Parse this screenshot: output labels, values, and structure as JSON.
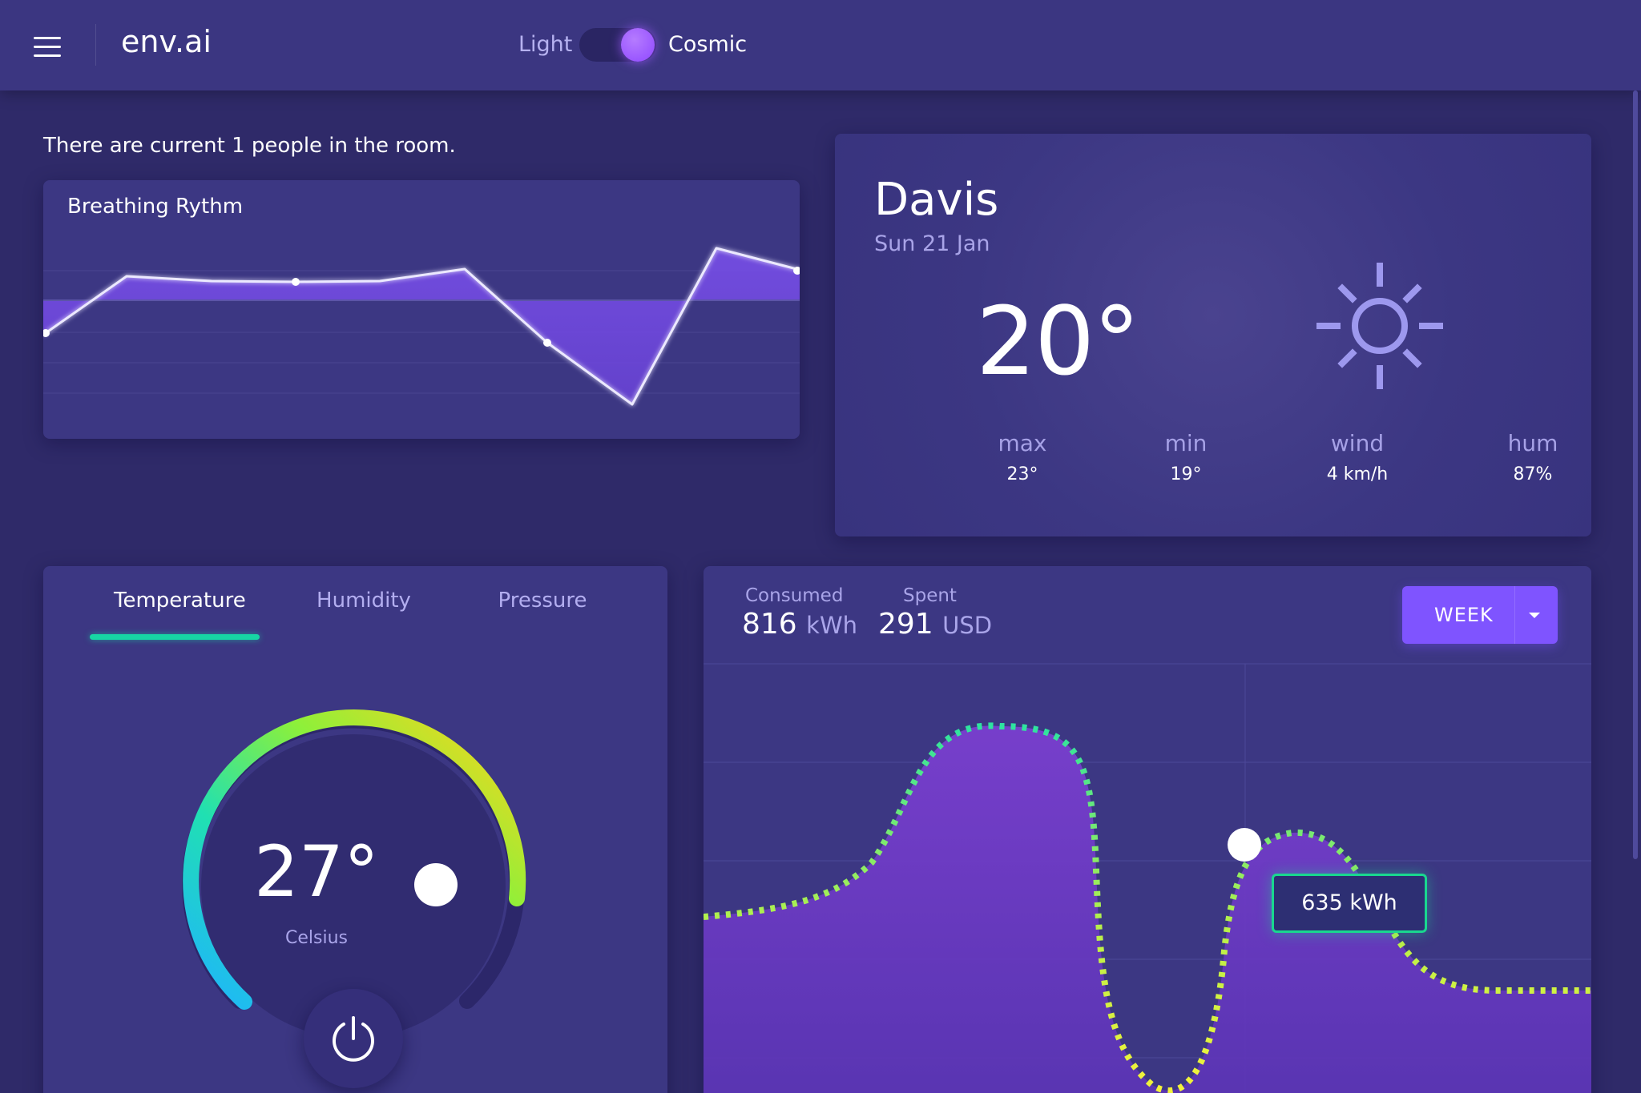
{
  "header": {
    "brand": "env.ai",
    "theme_light_label": "Light",
    "theme_cosmic_label": "Cosmic",
    "menu_icon": "hamburger-menu-icon"
  },
  "occupancy_text": "There are current 1 people in the room.",
  "breathing": {
    "title": "Breathing Rythm"
  },
  "weather": {
    "city": "Davis",
    "date": "Sun 21 Jan",
    "temperature": "20°",
    "icon": "sun-icon",
    "stats": [
      {
        "label": "max",
        "value": "23°"
      },
      {
        "label": "min",
        "value": "19°"
      },
      {
        "label": "wind",
        "value": "4 km/h"
      },
      {
        "label": "hum",
        "value": "87%"
      }
    ]
  },
  "controls": {
    "tabs": [
      {
        "label": "Temperature"
      },
      {
        "label": "Humidity"
      },
      {
        "label": "Pressure"
      }
    ],
    "active_tab": "Temperature",
    "gauge_value": "27°",
    "gauge_unit": "Celsius",
    "power_icon": "power-icon"
  },
  "energy": {
    "consumed_label": "Consumed",
    "consumed_value": "816",
    "consumed_unit": "kWh",
    "spent_label": "Spent",
    "spent_value": "291",
    "spent_unit": "USD",
    "period_label": "WEEK",
    "tooltip": "635 kWh"
  },
  "colors": {
    "background": "#2f2a69",
    "card": "#3c3783",
    "accent": "#7f54ff",
    "tab_indicator": "#17d6a4",
    "tooltip_border": "#19d88f"
  }
}
